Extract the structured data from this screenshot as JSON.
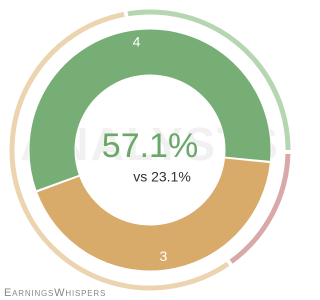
{
  "chart_data": {
    "type": "donut",
    "watermark": "ANALYSTS",
    "center_label": "57.1%",
    "center_sublabel": "vs 23.1%",
    "brand": "EarningsWhispers",
    "series": [
      {
        "ring": "inner",
        "colors": [
          "#77ae75",
          "#d9ab6a"
        ],
        "values": [
          4,
          3
        ]
      },
      {
        "ring": "outer",
        "colors": [
          "#b6d5b1",
          "#d9a8a8",
          "#ecd4b0"
        ],
        "values": [
          28,
          15,
          57
        ]
      }
    ]
  }
}
